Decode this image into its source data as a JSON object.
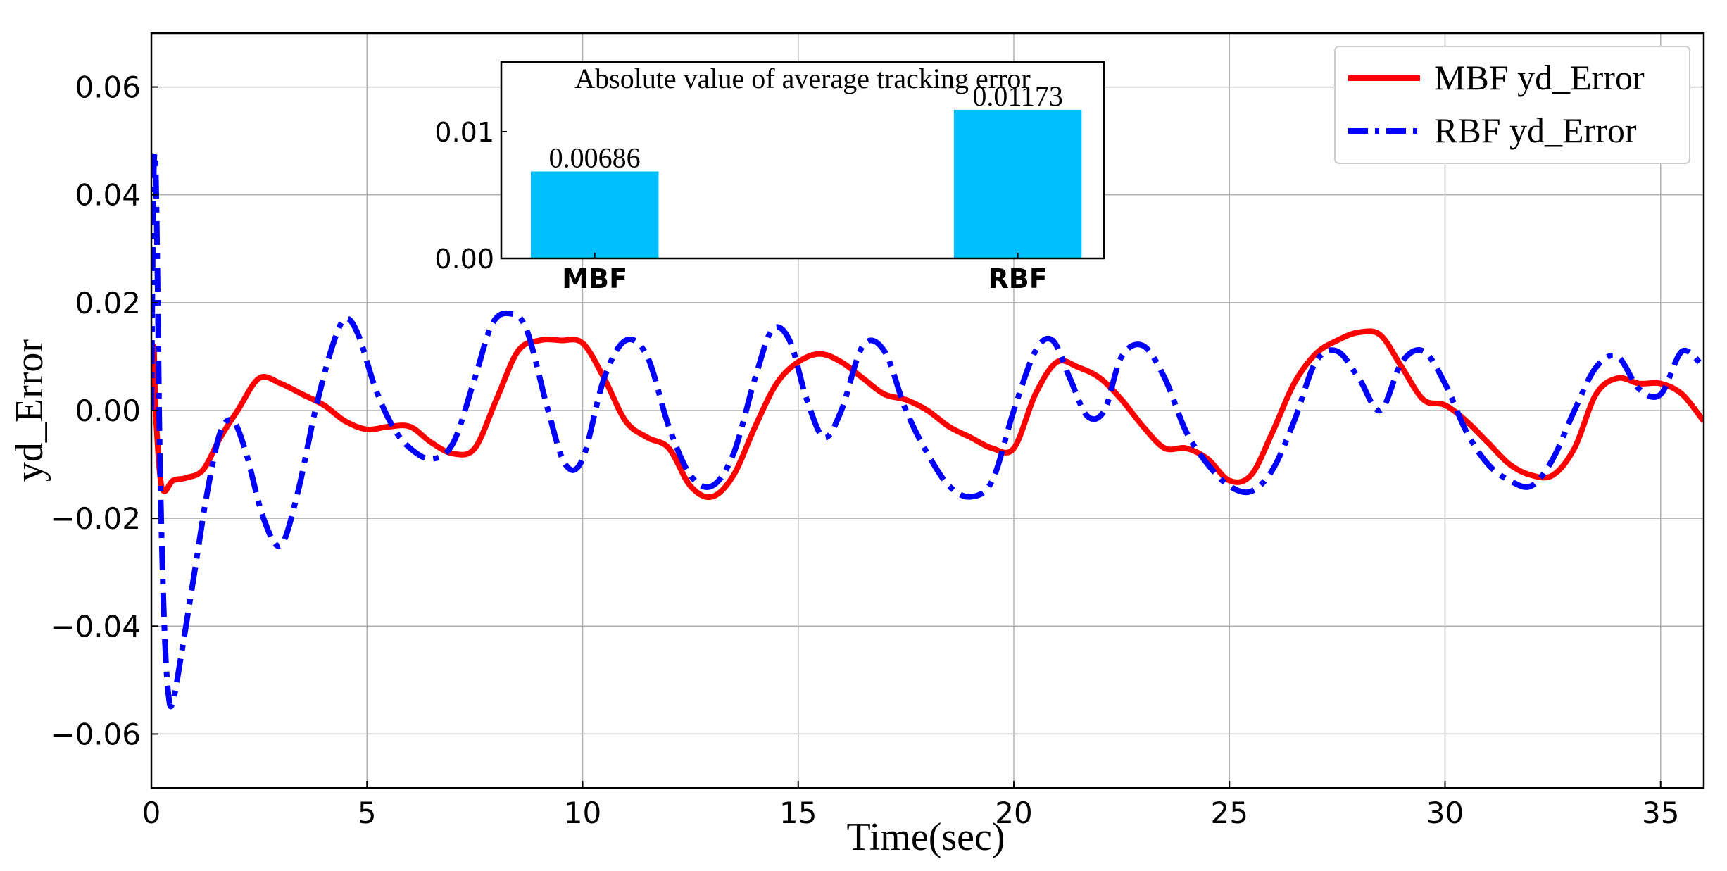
{
  "chart_data": [
    {
      "type": "line",
      "xlabel": "Time(sec)",
      "ylabel": "yd_Error",
      "xlim": [
        0,
        36
      ],
      "ylim": [
        -0.07,
        0.07
      ],
      "xticks": [
        0,
        5,
        10,
        15,
        20,
        25,
        30,
        35
      ],
      "xtick_labels": [
        "0",
        "5",
        "10",
        "15",
        "20",
        "25",
        "30",
        "35"
      ],
      "yticks": [
        -0.06,
        -0.04,
        -0.02,
        0.0,
        0.02,
        0.04,
        0.06
      ],
      "ytick_labels": [
        "−0.06",
        "−0.04",
        "−0.02",
        "0.00",
        "0.02",
        "0.04",
        "0.06"
      ],
      "grid": true,
      "legend_position": "top-right",
      "series": [
        {
          "name": "MBF yd_Error",
          "color": "#ff0000",
          "style": "solid",
          "x": [
            0,
            0.05,
            0.1,
            0.2,
            0.3,
            0.5,
            0.8,
            1.2,
            1.6,
            2.0,
            2.5,
            3.0,
            3.5,
            4.0,
            4.5,
            5.0,
            5.5,
            6.0,
            6.5,
            7.0,
            7.5,
            8.0,
            8.5,
            9.0,
            9.5,
            10.0,
            10.5,
            11.0,
            11.5,
            12.0,
            12.5,
            13.0,
            13.5,
            14.0,
            14.5,
            15.0,
            15.5,
            16.0,
            16.5,
            17.0,
            17.5,
            18.0,
            18.5,
            19.0,
            19.5,
            20.0,
            20.5,
            21.0,
            21.5,
            22.0,
            22.5,
            23.0,
            23.5,
            24.0,
            24.5,
            25.0,
            25.5,
            26.0,
            26.5,
            27.0,
            27.5,
            28.0,
            28.5,
            29.0,
            29.5,
            30.0,
            30.5,
            31.0,
            31.5,
            32.0,
            32.5,
            33.0,
            33.5,
            34.0,
            34.5,
            35.0,
            35.5,
            36.0
          ],
          "y": [
            0.0,
            0.012,
            0.0,
            -0.012,
            -0.015,
            -0.013,
            -0.0125,
            -0.011,
            -0.005,
            0.0,
            0.006,
            0.005,
            0.003,
            0.001,
            -0.002,
            -0.0035,
            -0.003,
            -0.003,
            -0.006,
            -0.008,
            -0.007,
            0.002,
            0.011,
            0.013,
            0.013,
            0.0125,
            0.006,
            -0.002,
            -0.005,
            -0.007,
            -0.014,
            -0.016,
            -0.012,
            -0.003,
            0.005,
            0.009,
            0.0105,
            0.009,
            0.006,
            0.003,
            0.002,
            0.0,
            -0.003,
            -0.005,
            -0.007,
            -0.007,
            0.003,
            0.009,
            0.008,
            0.006,
            0.002,
            -0.003,
            -0.007,
            -0.007,
            -0.009,
            -0.013,
            -0.012,
            -0.004,
            0.005,
            0.0105,
            0.013,
            0.0145,
            0.014,
            0.008,
            0.002,
            0.001,
            -0.002,
            -0.006,
            -0.01,
            -0.012,
            -0.012,
            -0.007,
            0.003,
            0.006,
            0.005,
            0.005,
            0.003,
            -0.002
          ]
        },
        {
          "name": "RBF yd_Error",
          "color": "#0000ff",
          "style": "dashdot",
          "x": [
            0,
            0.05,
            0.1,
            0.15,
            0.2,
            0.3,
            0.4,
            0.5,
            0.7,
            1.0,
            1.3,
            1.6,
            1.9,
            2.2,
            2.6,
            3.0,
            3.4,
            3.8,
            4.2,
            4.5,
            4.8,
            5.2,
            5.6,
            6.0,
            6.5,
            7.0,
            7.5,
            7.9,
            8.3,
            8.7,
            9.2,
            9.6,
            10.0,
            10.5,
            11.0,
            11.5,
            12.0,
            12.5,
            13.0,
            13.5,
            14.0,
            14.4,
            14.8,
            15.2,
            15.6,
            16.0,
            16.5,
            17.0,
            17.5,
            18.0,
            18.5,
            19.0,
            19.5,
            20.0,
            20.5,
            20.9,
            21.3,
            21.7,
            22.1,
            22.5,
            23.0,
            23.5,
            24.0,
            24.5,
            25.0,
            25.5,
            26.0,
            26.5,
            27.0,
            27.5,
            28.0,
            28.5,
            29.0,
            29.5,
            30.0,
            30.5,
            31.0,
            31.5,
            32.0,
            32.5,
            33.0,
            33.5,
            34.0,
            34.5,
            35.0,
            35.5,
            36.0
          ],
          "y": [
            0.0,
            0.042,
            0.045,
            0.02,
            -0.01,
            -0.04,
            -0.053,
            -0.054,
            -0.045,
            -0.03,
            -0.015,
            -0.004,
            -0.002,
            -0.008,
            -0.02,
            -0.025,
            -0.015,
            0.0,
            0.012,
            0.017,
            0.014,
            0.004,
            -0.003,
            -0.007,
            -0.009,
            -0.006,
            0.006,
            0.016,
            0.018,
            0.015,
            0.0,
            -0.01,
            -0.009,
            0.006,
            0.013,
            0.01,
            -0.003,
            -0.012,
            -0.014,
            -0.008,
            0.006,
            0.015,
            0.013,
            0.002,
            -0.005,
            0.0,
            0.012,
            0.011,
            0.0,
            -0.008,
            -0.014,
            -0.016,
            -0.013,
            0.0,
            0.011,
            0.013,
            0.006,
            -0.001,
            0.0,
            0.01,
            0.012,
            0.006,
            -0.004,
            -0.01,
            -0.014,
            -0.015,
            -0.011,
            -0.002,
            0.009,
            0.011,
            0.006,
            0.0,
            0.009,
            0.011,
            0.005,
            -0.004,
            -0.01,
            -0.013,
            -0.014,
            -0.009,
            0.0,
            0.008,
            0.01,
            0.004,
            0.003,
            0.011,
            0.008
          ]
        }
      ]
    },
    {
      "type": "bar",
      "title": "Absolute value of average tracking error",
      "categories": [
        "MBF",
        "RBF"
      ],
      "values": [
        0.00686,
        0.01173
      ],
      "value_labels": [
        "0.00686",
        "0.01173"
      ],
      "color": "#00bfff",
      "ylim": [
        0,
        0.0155
      ],
      "yticks": [
        0.0,
        0.01
      ],
      "ytick_labels": [
        "0.00",
        "0.01"
      ]
    }
  ]
}
